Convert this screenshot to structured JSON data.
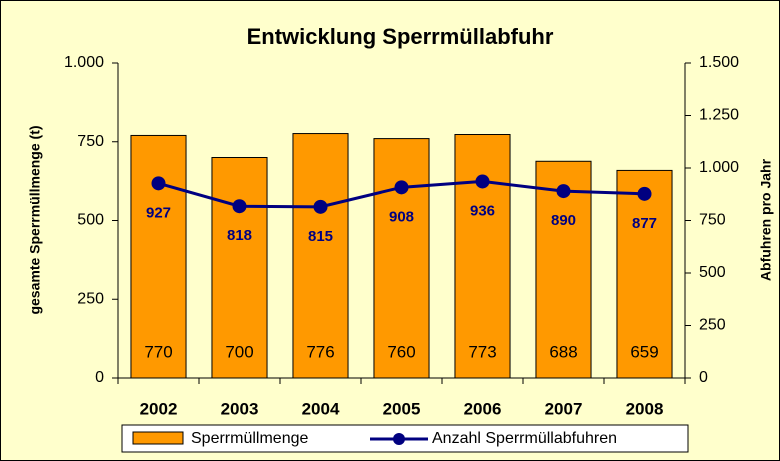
{
  "chart_data": {
    "type": "bar",
    "title": "Entwicklung Sperrmüllabfuhr",
    "y_label": "gesamte Sperrmüllmenge (t)",
    "y2_label": "Abfuhren pro Jahr",
    "categories": [
      "2002",
      "2003",
      "2004",
      "2005",
      "2006",
      "2007",
      "2008"
    ],
    "series": [
      {
        "name": "Sperrmüllmenge",
        "type": "bar",
        "color": "#ff9900",
        "values": [
          770,
          700,
          776,
          760,
          773,
          688,
          659
        ]
      },
      {
        "name": "Anzahl Sperrmüllabfuhren",
        "type": "line",
        "axis": "y2",
        "color": "#000080",
        "values": [
          927,
          818,
          815,
          908,
          936,
          890,
          877
        ]
      }
    ],
    "ylim": [
      0,
      1000
    ],
    "yticks": [
      0,
      250,
      500,
      750,
      {
        "value": 1000,
        "label": "1.000"
      }
    ],
    "y2lim": [
      0,
      1500
    ],
    "y2ticks": [
      0,
      250,
      500,
      750,
      {
        "value": 1000,
        "label": "1.000"
      },
      {
        "value": 1250,
        "label": "1.250"
      },
      {
        "value": 1500,
        "label": "1.500"
      }
    ],
    "legend": "bottom",
    "grid": false
  }
}
